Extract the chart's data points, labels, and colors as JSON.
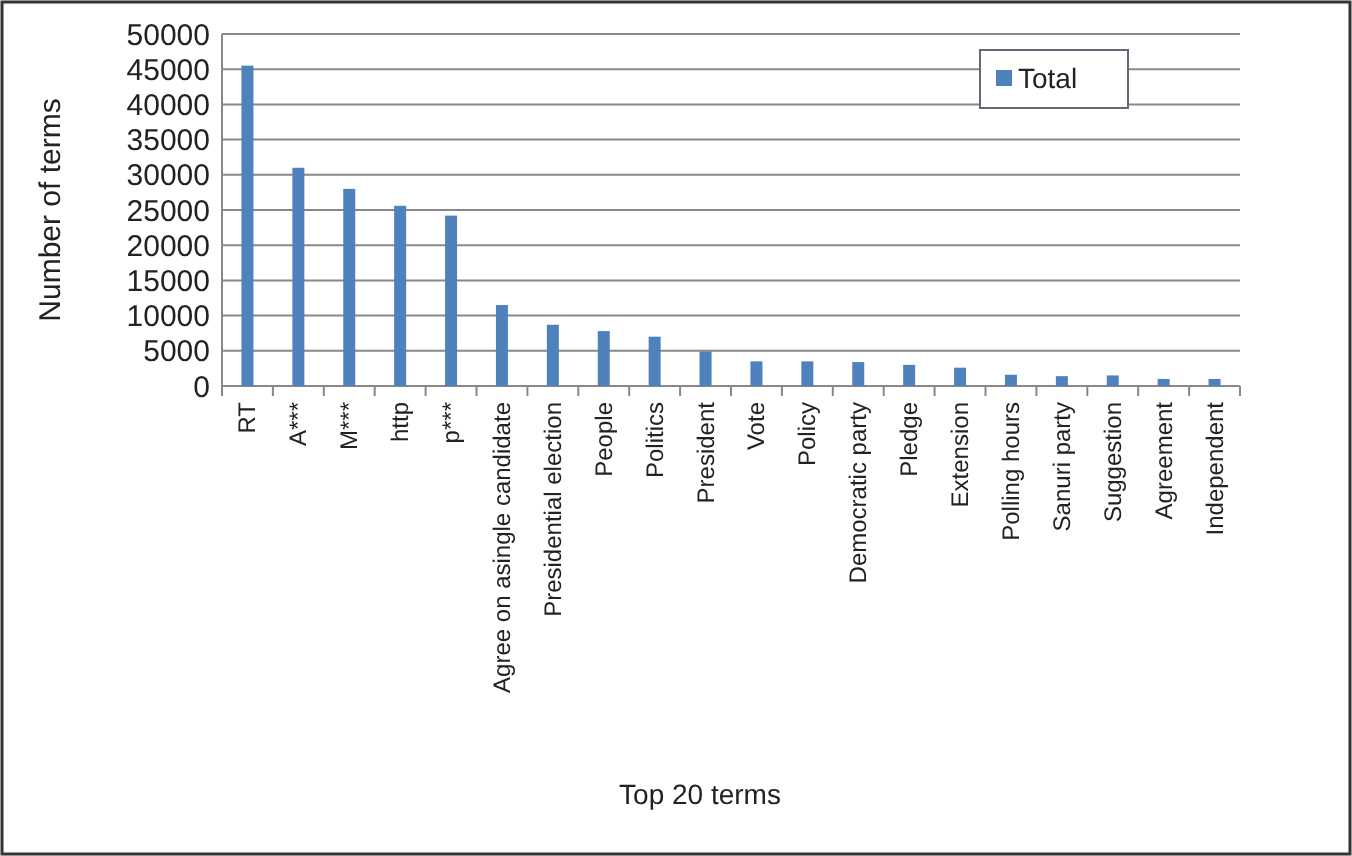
{
  "chart_data": {
    "type": "bar",
    "xlabel": "Top 20 terms",
    "ylabel": "Number of terms",
    "categories": [
      "RT",
      "A***",
      "M***",
      "http",
      "p***",
      "Agree on asingle candidate",
      "Presidential election",
      "People",
      "Politics",
      "President",
      "Vote",
      "Policy",
      "Democratic party",
      "Pledge",
      "Extension",
      "Polling hours",
      "Sanuri party",
      "Suggestion",
      "Agreement",
      "Independent"
    ],
    "series": [
      {
        "name": "Total",
        "color": "#4f81bd",
        "values": [
          45500,
          31000,
          28000,
          25600,
          24200,
          11500,
          8700,
          7800,
          7000,
          4900,
          3500,
          3500,
          3400,
          3000,
          2600,
          1600,
          1400,
          1500,
          1000,
          1000
        ]
      }
    ],
    "ylim": [
      0,
      50000
    ],
    "yticks": [
      0,
      5000,
      10000,
      15000,
      20000,
      25000,
      30000,
      35000,
      40000,
      45000,
      50000
    ],
    "grid": "y",
    "legend": "top right"
  }
}
